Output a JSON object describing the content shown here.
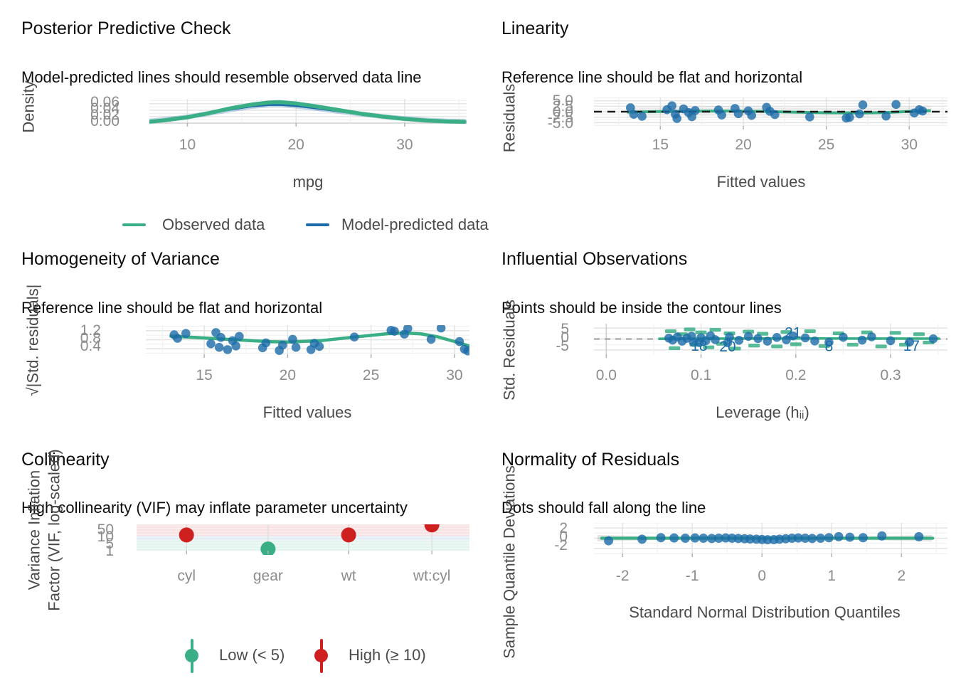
{
  "figure": {
    "colors": {
      "green": "#3aaf85",
      "blue": "#1b6ca8",
      "red": "#cd201f",
      "point_blue": "rgba(27,108,168,0.8)",
      "grid_major": "#e2e2e2",
      "grid_minor": "#f0f0f0",
      "tick_text": "#8c8c8c",
      "axis_label_text": "#4a4a4a",
      "title_text": "#0d0d0d"
    }
  },
  "chart_data": [
    {
      "id": "posterior-predictive-check",
      "type": "line",
      "title": "Posterior Predictive Check",
      "subtitle": "Model-predicted lines should resemble observed data line",
      "xlabel": "mpg",
      "ylabel": "Density",
      "xticks": [
        "10",
        "20",
        "30"
      ],
      "xtick_values": [
        10,
        20,
        30
      ],
      "yticks": [
        "0.06",
        "0.04",
        "0.02",
        "0.00"
      ],
      "xlim": [
        6.5,
        35.7
      ],
      "ylim": [
        0,
        0.075
      ],
      "legend": [
        {
          "label": "Observed data",
          "color": "#3aaf85"
        },
        {
          "label": "Model-predicted data",
          "color": "#1b6ca8"
        }
      ],
      "series": [
        {
          "name": "Observed data",
          "points": [
            [
              6.5,
              0.004
            ],
            [
              8,
              0.009
            ],
            [
              10,
              0.018
            ],
            [
              12,
              0.031
            ],
            [
              14,
              0.046
            ],
            [
              16,
              0.058
            ],
            [
              17.5,
              0.064
            ],
            [
              18.5,
              0.065
            ],
            [
              20,
              0.061
            ],
            [
              22,
              0.051
            ],
            [
              24,
              0.04
            ],
            [
              26,
              0.029
            ],
            [
              28,
              0.02
            ],
            [
              30,
              0.013
            ],
            [
              32,
              0.008
            ],
            [
              34,
              0.005
            ],
            [
              35.5,
              0.004
            ]
          ]
        },
        {
          "name": "Model-predicted data",
          "points": [
            [
              6.5,
              0.006
            ],
            [
              8,
              0.011
            ],
            [
              10,
              0.019
            ],
            [
              12,
              0.03
            ],
            [
              14,
              0.042
            ],
            [
              16,
              0.052
            ],
            [
              17.5,
              0.056
            ],
            [
              18.5,
              0.0565
            ],
            [
              20,
              0.053
            ],
            [
              22,
              0.045
            ],
            [
              24,
              0.036
            ],
            [
              26,
              0.028
            ],
            [
              28,
              0.02
            ],
            [
              30,
              0.014
            ],
            [
              32,
              0.009
            ],
            [
              34,
              0.006
            ],
            [
              35.5,
              0.005
            ]
          ]
        }
      ]
    },
    {
      "id": "linearity",
      "type": "scatter",
      "title": "Linearity",
      "subtitle": "Reference line should be flat and horizontal",
      "xlabel": "Fitted values",
      "ylabel": "Residuals",
      "xticks": [
        "15",
        "20",
        "25",
        "30"
      ],
      "xtick_values": [
        15,
        20,
        25,
        30
      ],
      "yticks": [
        "5.0",
        "2.5",
        "0.0",
        "-2.5",
        "-5.0"
      ],
      "xlim": [
        11,
        32.3
      ],
      "ylim": [
        -6.5,
        6.5
      ],
      "reference_line_y": 0,
      "points": [
        [
          13.2,
          1.8
        ],
        [
          13.4,
          -1.2
        ],
        [
          13.9,
          -2.1
        ],
        [
          15.4,
          0.9
        ],
        [
          15.7,
          2.7
        ],
        [
          15.9,
          -1.1
        ],
        [
          16.0,
          -3.1
        ],
        [
          16.4,
          1.3
        ],
        [
          16.7,
          -0.4
        ],
        [
          16.9,
          -2.3
        ],
        [
          17.1,
          0.5
        ],
        [
          18.5,
          0.8
        ],
        [
          18.7,
          -1.5
        ],
        [
          19.5,
          1.5
        ],
        [
          19.7,
          -0.9
        ],
        [
          20.3,
          0.4
        ],
        [
          20.5,
          -1.7
        ],
        [
          21.4,
          2.0
        ],
        [
          21.6,
          0.2
        ],
        [
          21.9,
          -1.3
        ],
        [
          24.0,
          -2.4
        ],
        [
          26.2,
          -2.9
        ],
        [
          26.4,
          -2.6
        ],
        [
          27.0,
          -1.0
        ],
        [
          27.2,
          3.1
        ],
        [
          28.6,
          -2.0
        ],
        [
          29.2,
          3.3
        ],
        [
          30.3,
          -0.6
        ],
        [
          30.6,
          0.9
        ],
        [
          30.8,
          0.3
        ]
      ],
      "smooth": [
        [
          13,
          -0.2
        ],
        [
          15,
          0.1
        ],
        [
          17,
          0.25
        ],
        [
          19,
          0.3
        ],
        [
          21,
          0.15
        ],
        [
          23,
          -0.2
        ],
        [
          25,
          -0.5
        ],
        [
          27,
          -0.6
        ],
        [
          28.5,
          -0.4
        ],
        [
          30,
          0.1
        ],
        [
          31.3,
          0.5
        ]
      ]
    },
    {
      "id": "homogeneity-of-variance",
      "type": "scatter",
      "title": "Homogeneity of Variance",
      "subtitle": "Reference line should be flat and horizontal",
      "xlabel": "Fitted values",
      "ylabel": "√|Std. residuals|",
      "xticks": [
        "15",
        "20",
        "25",
        "30"
      ],
      "xtick_values": [
        15,
        20,
        25,
        30
      ],
      "yticks": [
        "1.2",
        "0.8",
        "0.4"
      ],
      "xlim": [
        11.5,
        30.9
      ],
      "ylim": [
        0.15,
        1.45
      ],
      "points": [
        [
          13.2,
          1.02
        ],
        [
          13.4,
          0.86
        ],
        [
          13.9,
          1.08
        ],
        [
          15.4,
          0.62
        ],
        [
          15.7,
          1.12
        ],
        [
          15.9,
          0.46
        ],
        [
          16.0,
          0.9
        ],
        [
          16.4,
          0.36
        ],
        [
          16.7,
          0.76
        ],
        [
          16.9,
          0.52
        ],
        [
          17.1,
          0.95
        ],
        [
          18.5,
          0.44
        ],
        [
          18.7,
          0.66
        ],
        [
          19.5,
          0.32
        ],
        [
          19.7,
          0.56
        ],
        [
          20.3,
          0.82
        ],
        [
          20.5,
          0.46
        ],
        [
          21.4,
          0.36
        ],
        [
          21.6,
          0.64
        ],
        [
          21.9,
          0.5
        ],
        [
          24.0,
          0.92
        ],
        [
          26.2,
          1.22
        ],
        [
          26.4,
          1.18
        ],
        [
          27.0,
          1.05
        ],
        [
          27.2,
          1.3
        ],
        [
          28.6,
          0.82
        ],
        [
          29.2,
          1.32
        ],
        [
          30.3,
          0.72
        ],
        [
          30.6,
          0.38
        ],
        [
          30.8,
          0.3
        ]
      ],
      "smooth": [
        [
          13,
          0.96
        ],
        [
          15,
          0.88
        ],
        [
          17,
          0.79
        ],
        [
          19,
          0.71
        ],
        [
          20,
          0.7
        ],
        [
          22,
          0.76
        ],
        [
          24,
          0.92
        ],
        [
          26,
          1.07
        ],
        [
          27,
          1.1
        ],
        [
          28,
          1.06
        ],
        [
          29,
          0.93
        ],
        [
          30,
          0.72
        ],
        [
          30.9,
          0.52
        ]
      ]
    },
    {
      "id": "influential-observations",
      "type": "scatter",
      "title": "Influential Observations",
      "subtitle": "Points should be inside the contour lines",
      "xlabel": "Leverage (hᵢᵢ)",
      "ylabel": "Std. Residuals",
      "xticks": [
        "0.0",
        "0.1",
        "0.2",
        "0.3"
      ],
      "xtick_values": [
        0,
        0.1,
        0.2,
        0.3
      ],
      "yticks": [
        "5",
        "0",
        "-5"
      ],
      "xlim": [
        -0.013,
        0.36
      ],
      "ylim": [
        -7,
        7
      ],
      "reference_line_y": 0,
      "points": [
        [
          0.066,
          0.4
        ],
        [
          0.07,
          -0.5
        ],
        [
          0.075,
          0.9
        ],
        [
          0.08,
          -1.0
        ],
        [
          0.085,
          0.3
        ],
        [
          0.09,
          1.3
        ],
        [
          0.092,
          -1.5
        ],
        [
          0.098,
          -1.6
        ],
        [
          0.1,
          0.6
        ],
        [
          0.105,
          -0.8
        ],
        [
          0.11,
          1.5
        ],
        [
          0.115,
          -0.3
        ],
        [
          0.128,
          -1.7
        ],
        [
          0.13,
          0.9
        ],
        [
          0.14,
          -0.6
        ],
        [
          0.15,
          1.2
        ],
        [
          0.16,
          0.2
        ],
        [
          0.17,
          -1.0
        ],
        [
          0.18,
          0.7
        ],
        [
          0.19,
          -0.4
        ],
        [
          0.197,
          1.4
        ],
        [
          0.21,
          0.5
        ],
        [
          0.22,
          -0.9
        ],
        [
          0.235,
          -1.5
        ],
        [
          0.25,
          0.8
        ],
        [
          0.27,
          -0.5
        ],
        [
          0.28,
          1.0
        ],
        [
          0.3,
          -0.8
        ],
        [
          0.32,
          -1.4
        ],
        [
          0.345,
          0.1
        ]
      ],
      "point_labels": [
        {
          "label": "18",
          "x": 0.098,
          "y": -3.1
        },
        {
          "label": "20",
          "x": 0.128,
          "y": -3.4
        },
        {
          "label": "21",
          "x": 0.197,
          "y": 3.0
        },
        {
          "label": "8",
          "x": 0.235,
          "y": -3.3
        },
        {
          "label": "17",
          "x": 0.322,
          "y": -3.1
        }
      ],
      "contour_dashes": [
        [
          0.068,
          3.6
        ],
        [
          0.072,
          -4.2
        ],
        [
          0.08,
          2.2
        ],
        [
          0.088,
          4.4
        ],
        [
          0.094,
          -2.6
        ],
        [
          0.1,
          3.0
        ],
        [
          0.108,
          -3.8
        ],
        [
          0.115,
          4.2
        ],
        [
          0.122,
          -2.2
        ],
        [
          0.13,
          2.6
        ],
        [
          0.136,
          -4.4
        ],
        [
          0.15,
          3.4
        ],
        [
          0.156,
          -3.0
        ],
        [
          0.165,
          2.4
        ],
        [
          0.18,
          -3.4
        ],
        [
          0.19,
          3.2
        ],
        [
          0.2,
          -2.4
        ],
        [
          0.215,
          3.6
        ],
        [
          0.23,
          -3.2
        ],
        [
          0.245,
          2.6
        ],
        [
          0.26,
          -2.6
        ],
        [
          0.275,
          3.0
        ],
        [
          0.29,
          -3.4
        ],
        [
          0.305,
          2.8
        ],
        [
          0.315,
          -2.6
        ],
        [
          0.33,
          2.2
        ],
        [
          0.34,
          -1.6
        ]
      ],
      "smooth": [
        [
          0.055,
          0.1
        ],
        [
          0.12,
          0.2
        ],
        [
          0.2,
          0.25
        ],
        [
          0.28,
          0.2
        ],
        [
          0.352,
          0.15
        ]
      ]
    },
    {
      "id": "collinearity",
      "type": "scatter",
      "title": "Collinearity",
      "subtitle": "High collinearity (VIF) may inflate parameter uncertainty",
      "xlabel": "",
      "ylabel_line1": "Variance Inflation",
      "ylabel_line2": "Factor (VIF, log-scaled)",
      "categories": [
        "cyl",
        "gear",
        "wt",
        "wt:cyl"
      ],
      "vif_values": [
        11.5,
        1.3,
        11.5,
        55
      ],
      "vif_levels": [
        "high",
        "low",
        "high",
        "high"
      ],
      "yticks": [
        "50",
        "10",
        "5",
        "1"
      ],
      "y_scale": "log10",
      "ylim": [
        1,
        60
      ],
      "bands": [
        {
          "name": "high",
          "range": [
            10,
            60
          ],
          "color": "rgba(205,32,31,0.13)"
        },
        {
          "name": "moderate",
          "range": [
            5,
            10
          ],
          "color": "rgba(27,108,168,0.13)"
        },
        {
          "name": "low",
          "range": [
            1,
            5
          ],
          "color": "rgba(58,175,133,0.14)"
        }
      ],
      "legend": [
        {
          "label": "Low (< 5)",
          "color": "#3aaf85"
        },
        {
          "label": "High (≥ 10)",
          "color": "#cd201f"
        }
      ]
    },
    {
      "id": "normality-of-residuals",
      "type": "scatter",
      "title": "Normality of Residuals",
      "subtitle": "Dots should fall along the line",
      "xlabel": "Standard Normal Distribution Quantiles",
      "ylabel": "Sample Quantile Deviations",
      "xticks": [
        "-2",
        "-1",
        "0",
        "1",
        "2"
      ],
      "xtick_values": [
        -2,
        -1,
        0,
        1,
        2
      ],
      "yticks": [
        "2",
        "0",
        "-2"
      ],
      "xlim": [
        -2.41,
        2.66
      ],
      "ylim": [
        -3,
        3
      ],
      "reference_line_y": 0,
      "points": [
        [
          -2.2,
          -0.5
        ],
        [
          -1.72,
          -0.2
        ],
        [
          -1.45,
          0.1
        ],
        [
          -1.26,
          0.05
        ],
        [
          -1.1,
          0.0
        ],
        [
          -0.96,
          0.05
        ],
        [
          -0.84,
          0.0
        ],
        [
          -0.72,
          -0.05
        ],
        [
          -0.62,
          0.0
        ],
        [
          -0.52,
          0.05
        ],
        [
          -0.43,
          0.0
        ],
        [
          -0.34,
          -0.05
        ],
        [
          -0.25,
          -0.1
        ],
        [
          -0.17,
          -0.15
        ],
        [
          -0.08,
          -0.2
        ],
        [
          0.0,
          -0.25
        ],
        [
          0.08,
          -0.3
        ],
        [
          0.17,
          -0.28
        ],
        [
          0.25,
          -0.2
        ],
        [
          0.34,
          -0.1
        ],
        [
          0.43,
          0.0
        ],
        [
          0.52,
          0.05
        ],
        [
          0.62,
          0.0
        ],
        [
          0.72,
          -0.05
        ],
        [
          0.84,
          0.0
        ],
        [
          0.96,
          0.1
        ],
        [
          1.1,
          0.3
        ],
        [
          1.26,
          0.2
        ],
        [
          1.45,
          0.1
        ],
        [
          1.72,
          0.45
        ],
        [
          2.25,
          0.3
        ]
      ]
    }
  ]
}
